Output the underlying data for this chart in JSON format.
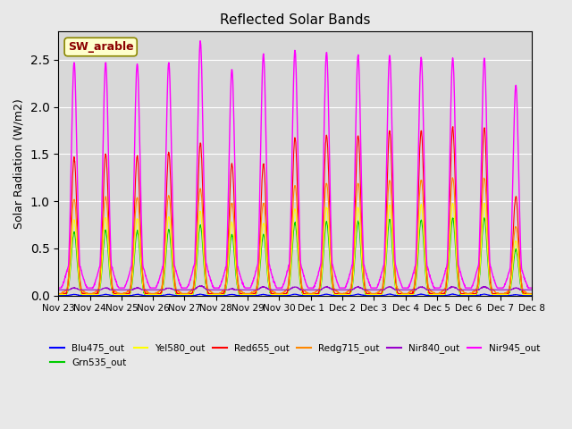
{
  "title": "Reflected Solar Bands",
  "ylabel": "Solar Radiation (W/m2)",
  "xlabel": "",
  "annotation": "SW_arable",
  "ylim": [
    0,
    2.8
  ],
  "background_color": "#e8e8e8",
  "plot_bg_color": "#d8d8d8",
  "series": [
    {
      "label": "Blu475_out",
      "color": "#0000ff",
      "scale": 0.01
    },
    {
      "label": "Grn535_out",
      "color": "#00cc00",
      "scale": 0.46
    },
    {
      "label": "Yel580_out",
      "color": "#ffff00",
      "scale": 0.55
    },
    {
      "label": "Red655_out",
      "color": "#ff0000",
      "scale": 1.0
    },
    {
      "label": "Redg715_out",
      "color": "#ff8800",
      "scale": 0.7
    },
    {
      "label": "Nir840_out",
      "color": "#9900cc",
      "scale": 0.05
    },
    {
      "label": "Nir945_out",
      "color": "#ff00ff",
      "scale": 1.65
    }
  ],
  "tick_labels": [
    "Nov 23",
    "Nov 24",
    "Nov 25",
    "Nov 26",
    "Nov 27",
    "Nov 28",
    "Nov 29",
    "Nov 30",
    "Dec 1",
    "Dec 2",
    "Dec 3",
    "Dec 4",
    "Dec 5",
    "Dec 6",
    "Dec 7",
    "Dec 8"
  ],
  "num_days": 15,
  "points_per_day": 144,
  "peak_scales": [
    1.46,
    1.5,
    1.48,
    1.52,
    1.62,
    1.4,
    1.4,
    1.67,
    1.7,
    1.7,
    1.75,
    1.75,
    1.78,
    1.78,
    1.05
  ],
  "nir945_peak_scales": [
    2.47,
    2.47,
    2.46,
    2.47,
    2.7,
    2.4,
    2.56,
    2.6,
    2.58,
    2.55,
    2.55,
    2.52,
    2.52,
    2.52,
    2.23
  ],
  "nir840_peak_scales": [
    0.08,
    0.08,
    0.08,
    0.08,
    0.1,
    0.07,
    0.09,
    0.09,
    0.09,
    0.09,
    0.09,
    0.09,
    0.09,
    0.09,
    0.08
  ],
  "baseline_nir945": 0.08,
  "baseline_nir840": 0.06
}
